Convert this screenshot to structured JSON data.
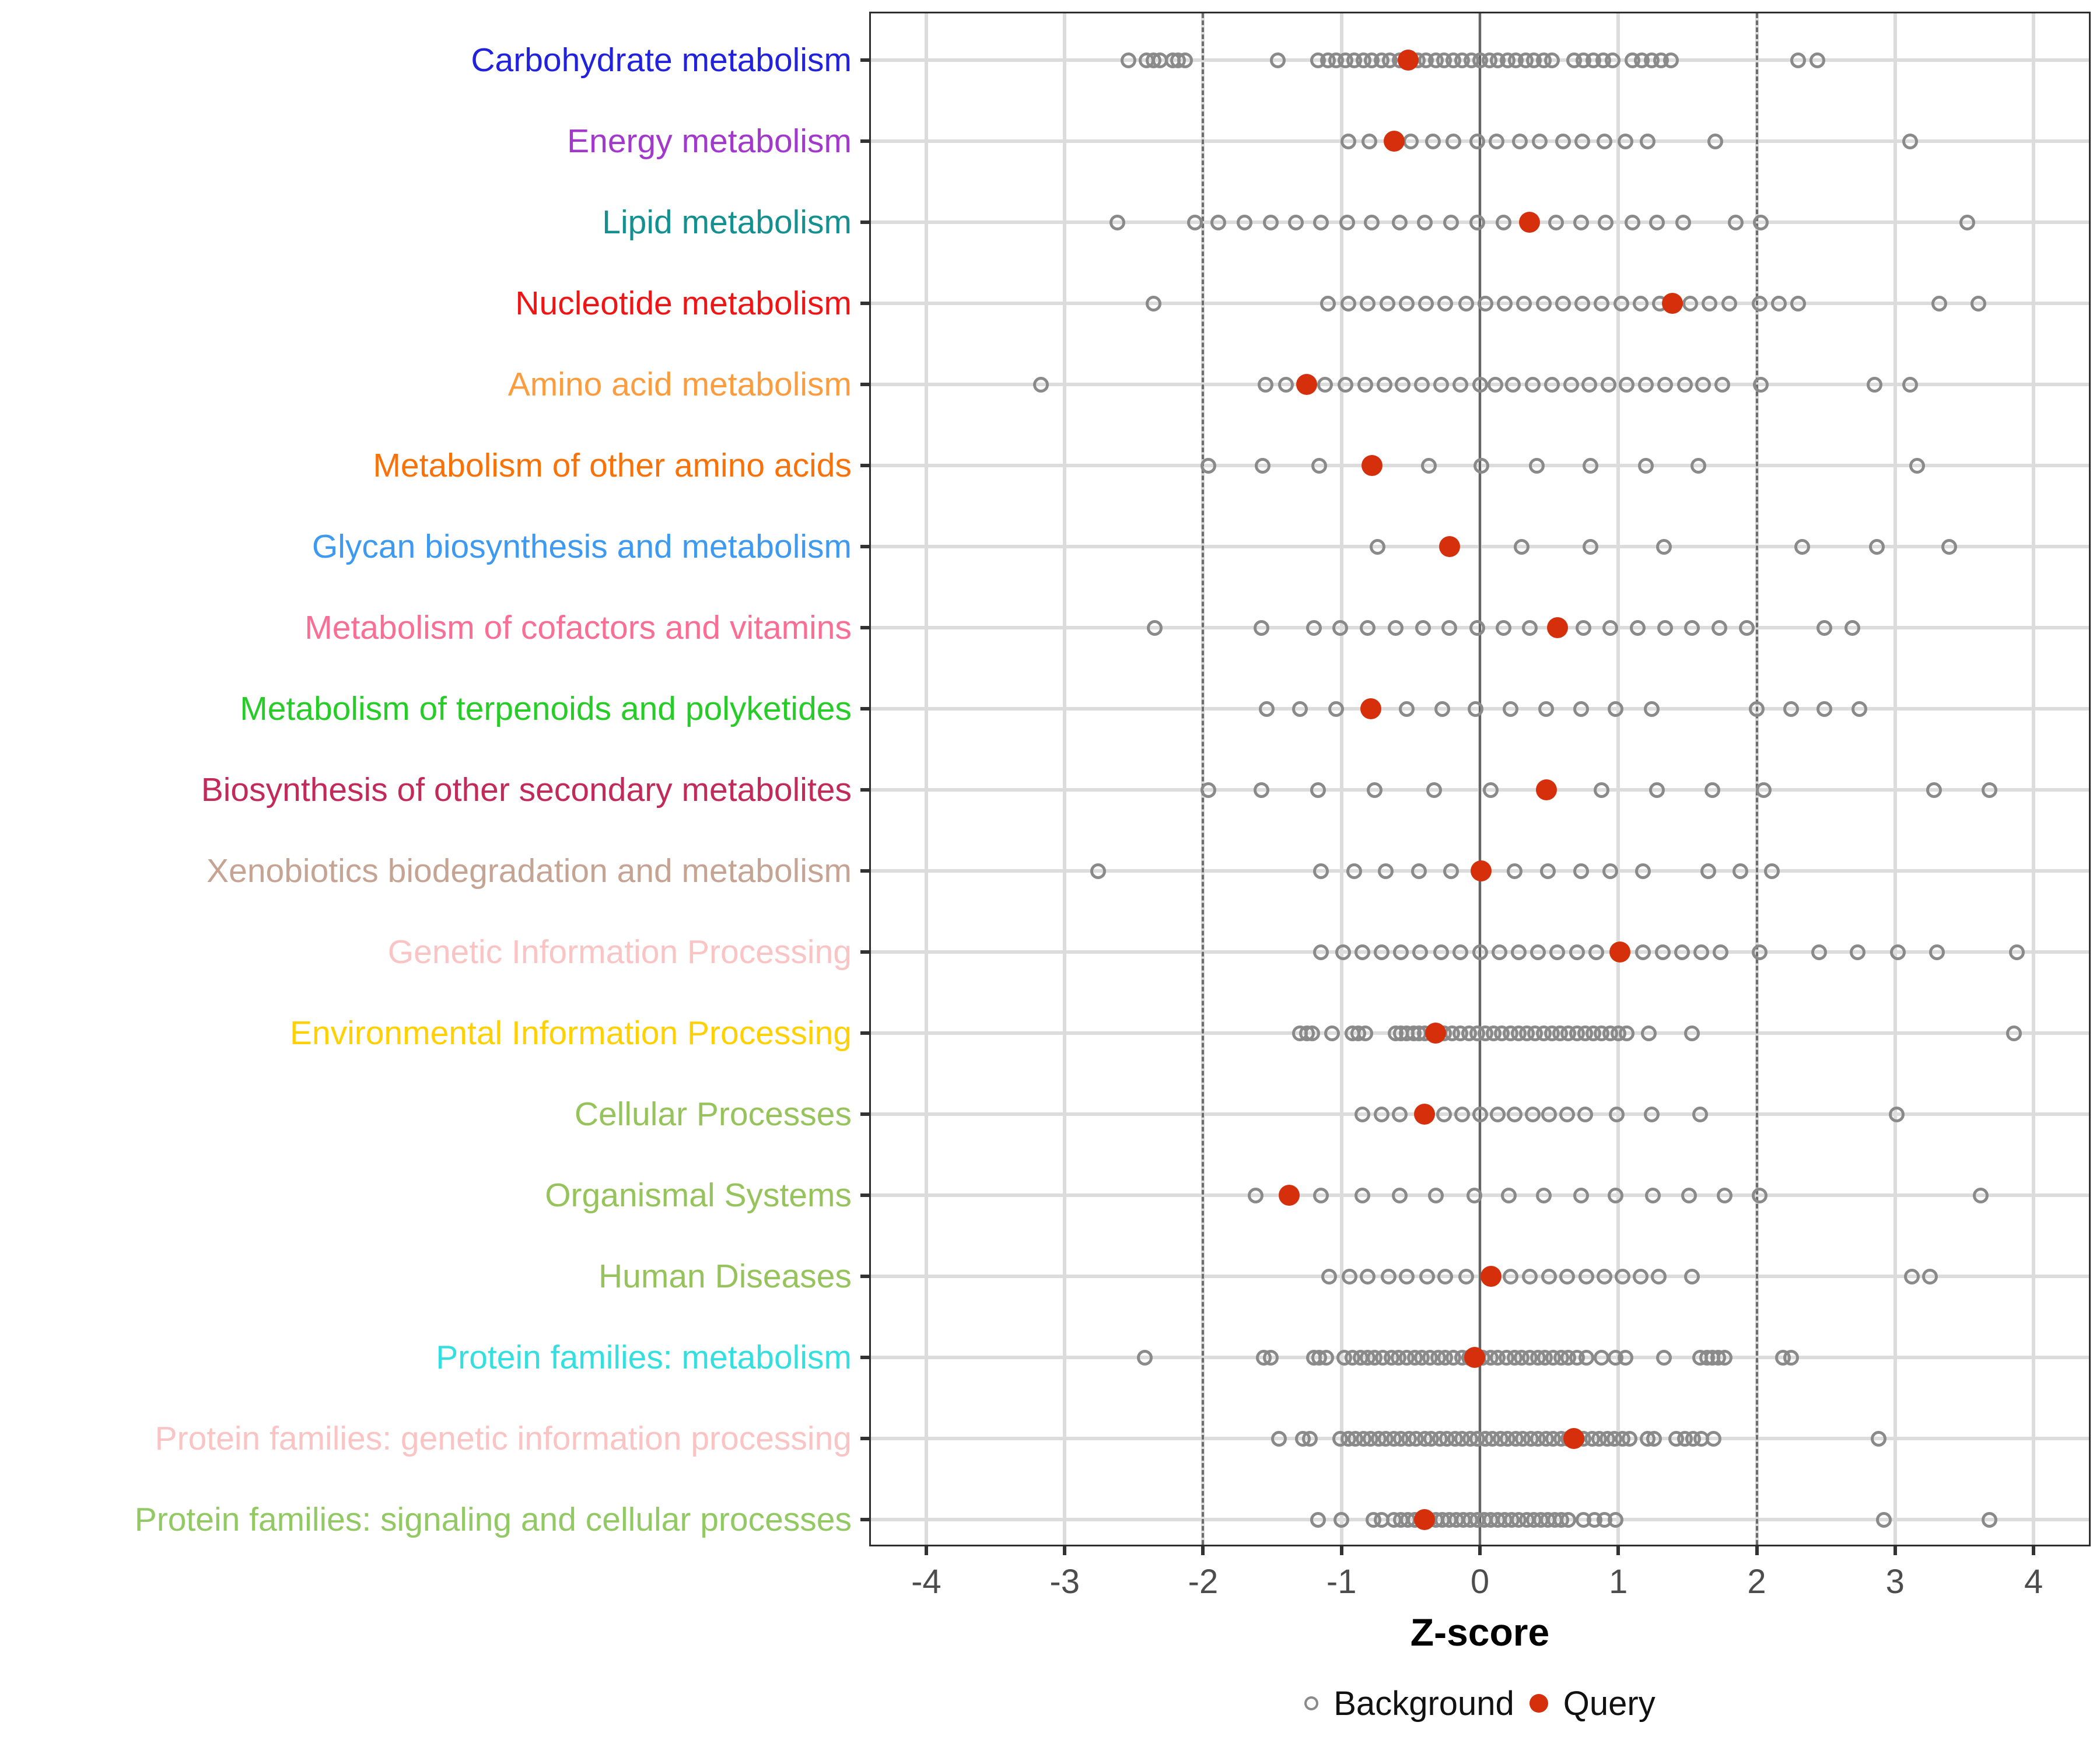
{
  "axis": {
    "title": "Z-score"
  },
  "legend": {
    "background": {
      "label": "Background",
      "color": "#8a8a8a"
    },
    "query": {
      "label": "Query",
      "color": "#d62f0c"
    }
  },
  "chart_data": {
    "type": "scatter",
    "subtype": "horizontal-strip-dot-plot",
    "xlabel": "Z-score",
    "xticks": [
      -4,
      -3,
      -2,
      -1,
      0,
      1,
      2,
      3,
      4
    ],
    "xlim": [
      -4.4,
      4.4
    ],
    "grid": true,
    "reference_lines": {
      "solid_at": 0,
      "dashed_at": [
        -2,
        2
      ]
    },
    "legend_position": "bottom",
    "series_legend": [
      {
        "name": "Background",
        "marker": "open-circle",
        "color": "#8a8a8a"
      },
      {
        "name": "Query",
        "marker": "filled-circle",
        "color": "#d62f0c"
      }
    ],
    "categories": [
      {
        "label": "Carbohydrate metabolism",
        "color": "#2222dd",
        "query": -0.52,
        "background": [
          -2.54,
          -2.41,
          -2.36,
          -2.31,
          -2.22,
          -2.18,
          -2.13,
          -1.46,
          -1.17,
          -1.1,
          -1.04,
          -0.97,
          -0.91,
          -0.84,
          -0.78,
          -0.71,
          -0.65,
          -0.58,
          -0.45,
          -0.39,
          -0.32,
          -0.26,
          -0.19,
          -0.13,
          -0.06,
          0,
          0.07,
          0.13,
          0.2,
          0.26,
          0.33,
          0.39,
          0.46,
          0.52,
          0.68,
          0.75,
          0.82,
          0.89,
          0.96,
          1.1,
          1.17,
          1.24,
          1.31,
          1.38,
          2.3,
          2.44
        ]
      },
      {
        "label": "Energy metabolism",
        "color": "#a238cc",
        "query": -0.62,
        "background": [
          -0.95,
          -0.8,
          -0.5,
          -0.34,
          -0.19,
          -0.02,
          0.12,
          0.29,
          0.43,
          0.6,
          0.74,
          0.9,
          1.05,
          1.21,
          1.7,
          3.11
        ]
      },
      {
        "label": "Lipid metabolism",
        "color": "#159090",
        "query": 0.36,
        "background": [
          -2.62,
          -2.06,
          -1.89,
          -1.7,
          -1.51,
          -1.33,
          -1.15,
          -0.96,
          -0.78,
          -0.58,
          -0.4,
          -0.21,
          -0.02,
          0.17,
          0.55,
          0.73,
          0.91,
          1.1,
          1.28,
          1.47,
          1.85,
          2.03,
          3.52
        ]
      },
      {
        "label": "Nucleotide metabolism",
        "color": "#f01414",
        "query": 1.39,
        "background": [
          -2.36,
          -1.1,
          -0.95,
          -0.81,
          -0.67,
          -0.53,
          -0.39,
          -0.25,
          -0.1,
          0.04,
          0.18,
          0.32,
          0.46,
          0.6,
          0.74,
          0.88,
          1.02,
          1.16,
          1.3,
          1.52,
          1.66,
          1.8,
          2.02,
          2.16,
          2.3,
          3.32,
          3.6
        ]
      },
      {
        "label": "Amino acid metabolism",
        "color": "#fb9d3f",
        "query": -1.25,
        "background": [
          -3.17,
          -1.55,
          -1.4,
          -1.12,
          -0.97,
          -0.83,
          -0.69,
          -0.56,
          -0.42,
          -0.28,
          -0.14,
          0,
          0.11,
          0.24,
          0.38,
          0.52,
          0.66,
          0.79,
          0.93,
          1.06,
          1.2,
          1.34,
          1.48,
          1.61,
          1.75,
          2.03,
          2.85,
          3.11
        ]
      },
      {
        "label": "Metabolism of other amino acids",
        "color": "#f97209",
        "query": -0.78,
        "background": [
          -1.96,
          -1.57,
          -1.16,
          -0.37,
          0.01,
          0.41,
          0.8,
          1.2,
          1.58,
          3.16
        ]
      },
      {
        "label": "Glycan biosynthesis and metabolism",
        "color": "#3e9af0",
        "query": -0.22,
        "background": [
          -0.74,
          0.3,
          0.8,
          1.33,
          2.33,
          2.87,
          3.39
        ]
      },
      {
        "label": "Metabolism of cofactors and vitamins",
        "color": "#fa6e96",
        "query": 0.56,
        "background": [
          -2.35,
          -1.58,
          -1.2,
          -1.01,
          -0.81,
          -0.61,
          -0.41,
          -0.22,
          -0.02,
          0.17,
          0.36,
          0.75,
          0.94,
          1.14,
          1.34,
          1.53,
          1.73,
          1.93,
          2.49,
          2.69
        ]
      },
      {
        "label": "Metabolism of terpenoids and polyketides",
        "color": "#28cc28",
        "query": -0.79,
        "background": [
          -1.54,
          -1.3,
          -1.04,
          -0.53,
          -0.27,
          -0.03,
          0.22,
          0.48,
          0.73,
          0.98,
          1.24,
          2,
          2.25,
          2.49,
          2.74
        ]
      },
      {
        "label": "Biosynthesis of other secondary metabolites",
        "color": "#c22a5a",
        "query": 0.48,
        "background": [
          -1.96,
          -1.58,
          -1.17,
          -0.76,
          -0.33,
          0.08,
          0.88,
          1.28,
          1.68,
          2.05,
          3.28,
          3.68
        ]
      },
      {
        "label": "Xenobiotics biodegradation and metabolism",
        "color": "#c6a494",
        "query": 0.01,
        "background": [
          -2.76,
          -1.15,
          -0.91,
          -0.68,
          -0.44,
          -0.21,
          0.25,
          0.49,
          0.73,
          0.94,
          1.18,
          1.65,
          1.88,
          2.11
        ]
      },
      {
        "label": "Genetic Information Processing",
        "color": "#fbc4c4",
        "query": 1.01,
        "background": [
          -1.15,
          -0.99,
          -0.85,
          -0.71,
          -0.57,
          -0.43,
          -0.28,
          -0.14,
          0,
          0.14,
          0.28,
          0.42,
          0.56,
          0.7,
          0.84,
          1.18,
          1.32,
          1.46,
          1.6,
          1.74,
          2.02,
          2.45,
          2.73,
          3.02,
          3.3,
          3.88
        ]
      },
      {
        "label": "Environmental Information Processing",
        "color": "#ffd105",
        "query": -0.32,
        "background": [
          -1.3,
          -1.25,
          -1.21,
          -1.07,
          -0.92,
          -0.88,
          -0.83,
          -0.61,
          -0.57,
          -0.53,
          -0.48,
          -0.44,
          -0.4,
          -0.26,
          -0.2,
          -0.14,
          -0.08,
          -0.02,
          0.04,
          0.1,
          0.16,
          0.22,
          0.28,
          0.34,
          0.4,
          0.46,
          0.52,
          0.58,
          0.64,
          0.7,
          0.76,
          0.82,
          0.88,
          0.94,
          1,
          1.06,
          1.22,
          1.53,
          3.86
        ]
      },
      {
        "label": "Cellular Processes",
        "color": "#97c35c",
        "query": -0.4,
        "background": [
          -0.85,
          -0.71,
          -0.58,
          -0.26,
          -0.13,
          0,
          0.13,
          0.25,
          0.38,
          0.5,
          0.63,
          0.76,
          0.99,
          1.24,
          1.59,
          3.01
        ]
      },
      {
        "label": "Organismal Systems",
        "color": "#97c35c",
        "query": -1.38,
        "background": [
          -1.62,
          -1.15,
          -0.85,
          -0.58,
          -0.32,
          -0.04,
          0.21,
          0.46,
          0.73,
          0.98,
          1.25,
          1.51,
          1.77,
          2.02,
          3.62
        ]
      },
      {
        "label": "Human Diseases",
        "color": "#97c35c",
        "query": 0.08,
        "background": [
          -1.09,
          -0.94,
          -0.81,
          -0.66,
          -0.53,
          -0.38,
          -0.25,
          -0.1,
          0.22,
          0.36,
          0.5,
          0.63,
          0.77,
          0.9,
          1.03,
          1.16,
          1.29,
          1.53,
          3.12,
          3.25
        ]
      },
      {
        "label": "Protein families: metabolism",
        "color": "#35dfdf",
        "query": -0.04,
        "background": [
          -2.42,
          -1.56,
          -1.51,
          -1.2,
          -1.16,
          -1.11,
          -0.98,
          -0.92,
          -0.86,
          -0.81,
          -0.76,
          -0.7,
          -0.64,
          -0.59,
          -0.53,
          -0.47,
          -0.42,
          -0.36,
          -0.3,
          -0.25,
          -0.19,
          -0.13,
          -0.08,
          0.02,
          0.08,
          0.13,
          0.19,
          0.25,
          0.3,
          0.36,
          0.42,
          0.47,
          0.53,
          0.59,
          0.64,
          0.7,
          0.77,
          0.88,
          0.98,
          1.05,
          1.33,
          1.59,
          1.64,
          1.68,
          1.72,
          1.77,
          2.19,
          2.25
        ]
      },
      {
        "label": "Protein families: genetic information processing",
        "color": "#fbc4c4",
        "query": 0.68,
        "background": [
          -1.45,
          -1.28,
          -1.23,
          -1.01,
          -0.95,
          -0.9,
          -0.84,
          -0.79,
          -0.73,
          -0.68,
          -0.62,
          -0.57,
          -0.51,
          -0.46,
          -0.4,
          -0.35,
          -0.29,
          -0.24,
          -0.18,
          -0.13,
          -0.07,
          -0.02,
          0.04,
          0.09,
          0.15,
          0.2,
          0.26,
          0.31,
          0.37,
          0.42,
          0.48,
          0.53,
          0.59,
          0.64,
          0.7,
          0.75,
          0.81,
          0.86,
          0.92,
          0.97,
          1.03,
          1.08,
          1.21,
          1.26,
          1.42,
          1.48,
          1.54,
          1.6,
          1.69,
          2.88
        ]
      },
      {
        "label": "Protein families: signaling and cellular processes",
        "color": "#93c964",
        "query": -0.4,
        "background": [
          -1.17,
          -1,
          -0.77,
          -0.71,
          -0.62,
          -0.57,
          -0.52,
          -0.47,
          -0.42,
          -0.37,
          -0.32,
          -0.27,
          -0.22,
          -0.17,
          -0.12,
          -0.07,
          -0.02,
          0.03,
          0.08,
          0.13,
          0.18,
          0.23,
          0.28,
          0.34,
          0.39,
          0.44,
          0.49,
          0.54,
          0.59,
          0.64,
          0.75,
          0.83,
          0.9,
          0.98,
          2.92,
          3.68
        ]
      }
    ]
  },
  "style": {
    "grid_color": "#dcdcdc",
    "zero_line_color": "#636363",
    "dashed_line_color": "#6e6e6e",
    "tick_label_color": "#4d4d4d",
    "background_point_color": "#8a8a8a",
    "query_point_color": "#d62f0c"
  }
}
